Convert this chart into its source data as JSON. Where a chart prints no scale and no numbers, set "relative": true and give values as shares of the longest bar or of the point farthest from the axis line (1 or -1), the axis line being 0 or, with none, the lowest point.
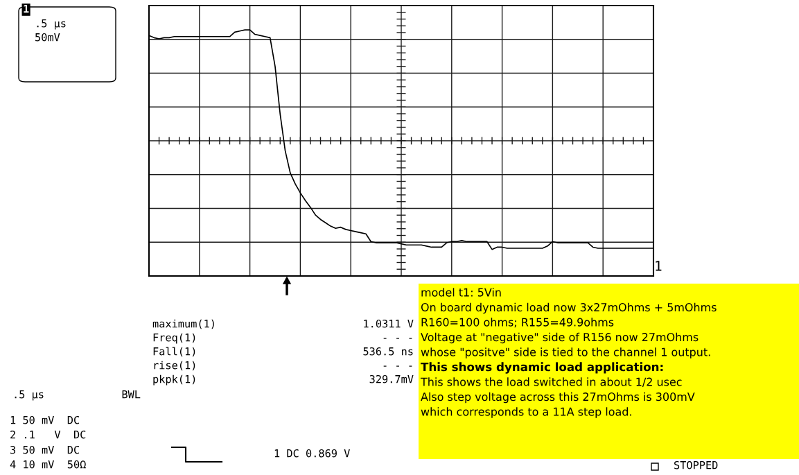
{
  "chart_data": {
    "type": "line",
    "relative": true,
    "grid": true,
    "legend": false,
    "marker": "none",
    "line_style": "solid",
    "categories": [
      null,
      null,
      null,
      null,
      null,
      null,
      null,
      null,
      null,
      null,
      null,
      null,
      null,
      null,
      null,
      null,
      null,
      null,
      null,
      null,
      null,
      null,
      null,
      null,
      null,
      null,
      null,
      null,
      null,
      null,
      null,
      null,
      null,
      null,
      null,
      null,
      null,
      null,
      null,
      null,
      null,
      null,
      null,
      null,
      null,
      null,
      null,
      null,
      null,
      null,
      null,
      null,
      null,
      null,
      null,
      null,
      null,
      null,
      null,
      null,
      null,
      null,
      null,
      null,
      null,
      null,
      null,
      null,
      null,
      null,
      null,
      null,
      null,
      null,
      null,
      null,
      null,
      null,
      null,
      null,
      null,
      null,
      null,
      null,
      null,
      null,
      null,
      null,
      null,
      null,
      null,
      null,
      null,
      null,
      null,
      null,
      null,
      null,
      null,
      null,
      null
    ],
    "series": [
      {
        "color": "#000000",
        "values": [
          0.95,
          0.93,
          0.92,
          0.93,
          0.93,
          0.94,
          0.94,
          0.94,
          0.94,
          0.94,
          0.94,
          0.94,
          0.94,
          0.94,
          0.94,
          0.94,
          0.94,
          0.98,
          0.99,
          1.0,
          1.0,
          0.96,
          0.95,
          0.94,
          0.93,
          0.67,
          0.24,
          -0.09,
          -0.29,
          -0.39,
          -0.47,
          -0.54,
          -0.6,
          -0.67,
          -0.71,
          -0.74,
          -0.77,
          -0.79,
          -0.78,
          -0.8,
          -0.81,
          -0.82,
          -0.83,
          -0.84,
          -0.91,
          -0.92,
          -0.92,
          -0.92,
          -0.92,
          -0.92,
          -0.93,
          -0.94,
          -0.94,
          -0.94,
          -0.94,
          -0.95,
          -0.96,
          -0.96,
          -0.96,
          -0.92,
          -0.91,
          -0.91,
          -0.9,
          -0.91,
          -0.91,
          -0.91,
          -0.91,
          -0.91,
          -0.98,
          -0.96,
          -0.96,
          -0.97,
          -0.97,
          -0.97,
          -0.97,
          -0.97,
          -0.97,
          -0.97,
          -0.97,
          -0.95,
          -0.91,
          -0.92,
          -0.92,
          -0.92,
          -0.92,
          -0.92,
          -0.92,
          -0.92,
          -0.96,
          -0.97,
          -0.97,
          -0.97,
          -0.97,
          -0.97,
          -0.97,
          -0.97,
          -0.97,
          -0.97,
          -0.97,
          -0.97,
          -0.97
        ]
      }
    ],
    "annotations": [
      "1",
      ".5 µs",
      "50mV",
      "maximum(1)",
      "1.0311 V",
      "Freq(1)",
      "- - -",
      "Fall(1)",
      "536.5 ns",
      "rise(1)",
      "- - -",
      "pkpk(1)",
      "329.7mV",
      ".5 µs",
      "BWL",
      "1 50 mV  DC",
      "2 .1   V  DC",
      "3 50 mV  DC",
      "4 10 mV  50Ω",
      "1 DC 0.869 V",
      "1",
      "STOPPED",
      "model t1: 5Vin",
      "On board dynamic load now 3x27mOhms + 5mOhms",
      "R160=100 ohms; R155=49.9ohms",
      "Voltage at \"negative\" side of R156 now 27mOhms",
      "whose \"positve\" side is tied to the channel 1 output.",
      "This shows dynamic load application:",
      "This shows the load switched in about 1/2 usec",
      "Also step voltage across this 27mOhms is 300mV",
      "which corresponds to a 11A step load."
    ]
  }
}
